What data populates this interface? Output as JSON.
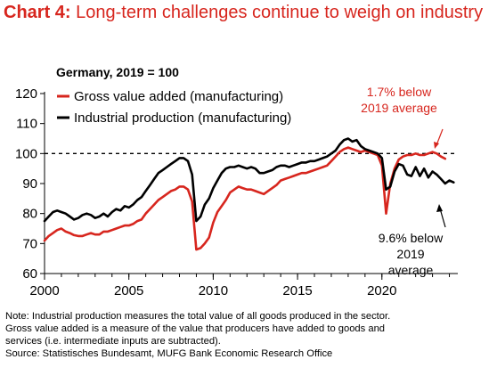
{
  "title": {
    "prefix": "Chart 4:",
    "text": "Long-term challenges continue to weigh on industry"
  },
  "notes": [
    "Note: Industrial production measures the total value of all goods produced in the sector.",
    "Gross value added is a measure of the value that producers have added to goods and",
    "services (i.e. intermediate inputs are subtracted).",
    "Source: Statistisches Bundesamt, MUFG Bank Economic Research Office"
  ],
  "chart_data": {
    "type": "line",
    "subtitle": "Germany, 2019 = 100",
    "ylim": [
      60,
      120
    ],
    "yticks": [
      60,
      70,
      80,
      90,
      100,
      110,
      120
    ],
    "xlim": [
      2000,
      2024.5
    ],
    "xticks": [
      2000,
      2005,
      2010,
      2015,
      2020
    ],
    "reference_line": 100,
    "legend_placement": "top-left",
    "series": [
      {
        "name": "Gross value added (manufacturing)",
        "color": "#d7261e",
        "points": [
          [
            2000,
            71
          ],
          [
            2000.25,
            72.5
          ],
          [
            2000.5,
            73.5
          ],
          [
            2000.75,
            74.5
          ],
          [
            2001,
            75
          ],
          [
            2001.25,
            74
          ],
          [
            2001.5,
            73.5
          ],
          [
            2001.75,
            72.8
          ],
          [
            2002,
            72.5
          ],
          [
            2002.25,
            72.5
          ],
          [
            2002.5,
            73
          ],
          [
            2002.75,
            73.5
          ],
          [
            2003,
            73
          ],
          [
            2003.25,
            73
          ],
          [
            2003.5,
            74
          ],
          [
            2003.75,
            74
          ],
          [
            2004,
            74.5
          ],
          [
            2004.25,
            75
          ],
          [
            2004.5,
            75.5
          ],
          [
            2004.75,
            76
          ],
          [
            2005,
            76
          ],
          [
            2005.25,
            76.5
          ],
          [
            2005.5,
            77.5
          ],
          [
            2005.75,
            78
          ],
          [
            2006,
            80
          ],
          [
            2006.25,
            81.5
          ],
          [
            2006.5,
            83
          ],
          [
            2006.75,
            84.5
          ],
          [
            2007,
            85.5
          ],
          [
            2007.25,
            86.5
          ],
          [
            2007.5,
            87.5
          ],
          [
            2007.75,
            88
          ],
          [
            2008,
            89
          ],
          [
            2008.25,
            89
          ],
          [
            2008.5,
            88
          ],
          [
            2008.75,
            84
          ],
          [
            2009,
            68
          ],
          [
            2009.25,
            68.5
          ],
          [
            2009.5,
            70
          ],
          [
            2009.75,
            72
          ],
          [
            2010,
            77
          ],
          [
            2010.25,
            80.5
          ],
          [
            2010.5,
            82.5
          ],
          [
            2010.75,
            84.5
          ],
          [
            2011,
            87
          ],
          [
            2011.25,
            88
          ],
          [
            2011.5,
            89
          ],
          [
            2011.75,
            88.5
          ],
          [
            2012,
            88
          ],
          [
            2012.25,
            88
          ],
          [
            2012.5,
            87.5
          ],
          [
            2012.75,
            87
          ],
          [
            2013,
            86.5
          ],
          [
            2013.25,
            87.5
          ],
          [
            2013.5,
            88.5
          ],
          [
            2013.75,
            89.5
          ],
          [
            2014,
            91
          ],
          [
            2014.25,
            91.5
          ],
          [
            2014.5,
            92
          ],
          [
            2014.75,
            92.5
          ],
          [
            2015,
            93
          ],
          [
            2015.25,
            93.5
          ],
          [
            2015.5,
            93.5
          ],
          [
            2015.75,
            94
          ],
          [
            2016,
            94.5
          ],
          [
            2016.25,
            95
          ],
          [
            2016.5,
            95.5
          ],
          [
            2016.75,
            96
          ],
          [
            2017,
            97.5
          ],
          [
            2017.25,
            99
          ],
          [
            2017.5,
            100.5
          ],
          [
            2017.75,
            101.5
          ],
          [
            2018,
            102
          ],
          [
            2018.25,
            101.5
          ],
          [
            2018.5,
            101
          ],
          [
            2018.75,
            100.5
          ],
          [
            2019,
            101
          ],
          [
            2019.25,
            100.5
          ],
          [
            2019.5,
            100
          ],
          [
            2019.75,
            99.5
          ],
          [
            2020,
            96
          ],
          [
            2020.25,
            80
          ],
          [
            2020.5,
            90
          ],
          [
            2020.75,
            95
          ],
          [
            2021,
            98
          ],
          [
            2021.25,
            99
          ],
          [
            2021.5,
            99.5
          ],
          [
            2021.75,
            99.5
          ],
          [
            2022,
            100
          ],
          [
            2022.25,
            99.5
          ],
          [
            2022.5,
            99.5
          ],
          [
            2022.75,
            100
          ],
          [
            2023,
            100.5
          ],
          [
            2023.25,
            100
          ],
          [
            2023.5,
            99
          ],
          [
            2023.75,
            98.3
          ]
        ]
      },
      {
        "name": "Industrial production (manufacturing)",
        "color": "#000000",
        "points": [
          [
            2000,
            77.5
          ],
          [
            2000.25,
            79
          ],
          [
            2000.5,
            80.5
          ],
          [
            2000.75,
            81
          ],
          [
            2001,
            80.5
          ],
          [
            2001.25,
            80
          ],
          [
            2001.5,
            79
          ],
          [
            2001.75,
            78
          ],
          [
            2002,
            78.5
          ],
          [
            2002.25,
            79.5
          ],
          [
            2002.5,
            80
          ],
          [
            2002.75,
            79.5
          ],
          [
            2003,
            78.5
          ],
          [
            2003.25,
            79
          ],
          [
            2003.5,
            80
          ],
          [
            2003.75,
            79
          ],
          [
            2004,
            80.5
          ],
          [
            2004.25,
            81.5
          ],
          [
            2004.5,
            81
          ],
          [
            2004.75,
            82.5
          ],
          [
            2005,
            82
          ],
          [
            2005.25,
            83
          ],
          [
            2005.5,
            84.5
          ],
          [
            2005.75,
            85.5
          ],
          [
            2006,
            87.5
          ],
          [
            2006.25,
            89.5
          ],
          [
            2006.5,
            91.5
          ],
          [
            2006.75,
            93.5
          ],
          [
            2007,
            94.5
          ],
          [
            2007.25,
            95.5
          ],
          [
            2007.5,
            96.5
          ],
          [
            2007.75,
            97.5
          ],
          [
            2008,
            98.5
          ],
          [
            2008.25,
            98.5
          ],
          [
            2008.5,
            97.5
          ],
          [
            2008.75,
            93
          ],
          [
            2009,
            77.5
          ],
          [
            2009.25,
            79
          ],
          [
            2009.5,
            83
          ],
          [
            2009.75,
            85
          ],
          [
            2010,
            88.5
          ],
          [
            2010.25,
            91
          ],
          [
            2010.5,
            93.5
          ],
          [
            2010.75,
            95
          ],
          [
            2011,
            95.5
          ],
          [
            2011.25,
            95.5
          ],
          [
            2011.5,
            96
          ],
          [
            2011.75,
            95.5
          ],
          [
            2012,
            95
          ],
          [
            2012.25,
            95.5
          ],
          [
            2012.5,
            95
          ],
          [
            2012.75,
            93.5
          ],
          [
            2013,
            93.5
          ],
          [
            2013.25,
            94
          ],
          [
            2013.5,
            94.5
          ],
          [
            2013.75,
            95.5
          ],
          [
            2014,
            96
          ],
          [
            2014.25,
            96
          ],
          [
            2014.5,
            95.5
          ],
          [
            2014.75,
            96
          ],
          [
            2015,
            96.5
          ],
          [
            2015.25,
            97
          ],
          [
            2015.5,
            97
          ],
          [
            2015.75,
            97.5
          ],
          [
            2016,
            97.5
          ],
          [
            2016.25,
            98
          ],
          [
            2016.5,
            98.5
          ],
          [
            2016.75,
            99
          ],
          [
            2017,
            100
          ],
          [
            2017.25,
            101
          ],
          [
            2017.5,
            103
          ],
          [
            2017.75,
            104.5
          ],
          [
            2018,
            105
          ],
          [
            2018.25,
            104
          ],
          [
            2018.5,
            104.5
          ],
          [
            2018.75,
            102.5
          ],
          [
            2019,
            101.5
          ],
          [
            2019.25,
            101
          ],
          [
            2019.5,
            100.5
          ],
          [
            2019.75,
            100
          ],
          [
            2020,
            98.5
          ],
          [
            2020.25,
            88
          ],
          [
            2020.5,
            89
          ],
          [
            2020.75,
            94
          ],
          [
            2021,
            96.5
          ],
          [
            2021.25,
            96
          ],
          [
            2021.5,
            93
          ],
          [
            2021.75,
            92.5
          ],
          [
            2022,
            95.5
          ],
          [
            2022.25,
            92.5
          ],
          [
            2022.5,
            95
          ],
          [
            2022.75,
            92
          ],
          [
            2023,
            94
          ],
          [
            2023.25,
            93
          ],
          [
            2023.5,
            91.5
          ],
          [
            2023.75,
            90
          ],
          [
            2024,
            91
          ],
          [
            2024.25,
            90.4
          ]
        ]
      }
    ],
    "annotations": [
      {
        "id": "gva",
        "lines": [
          "1.7% below",
          "2019 average"
        ],
        "color": "#d7261e"
      },
      {
        "id": "ip",
        "lines": [
          "9.6% below",
          "2019",
          "average"
        ],
        "color": "#000000"
      }
    ]
  }
}
